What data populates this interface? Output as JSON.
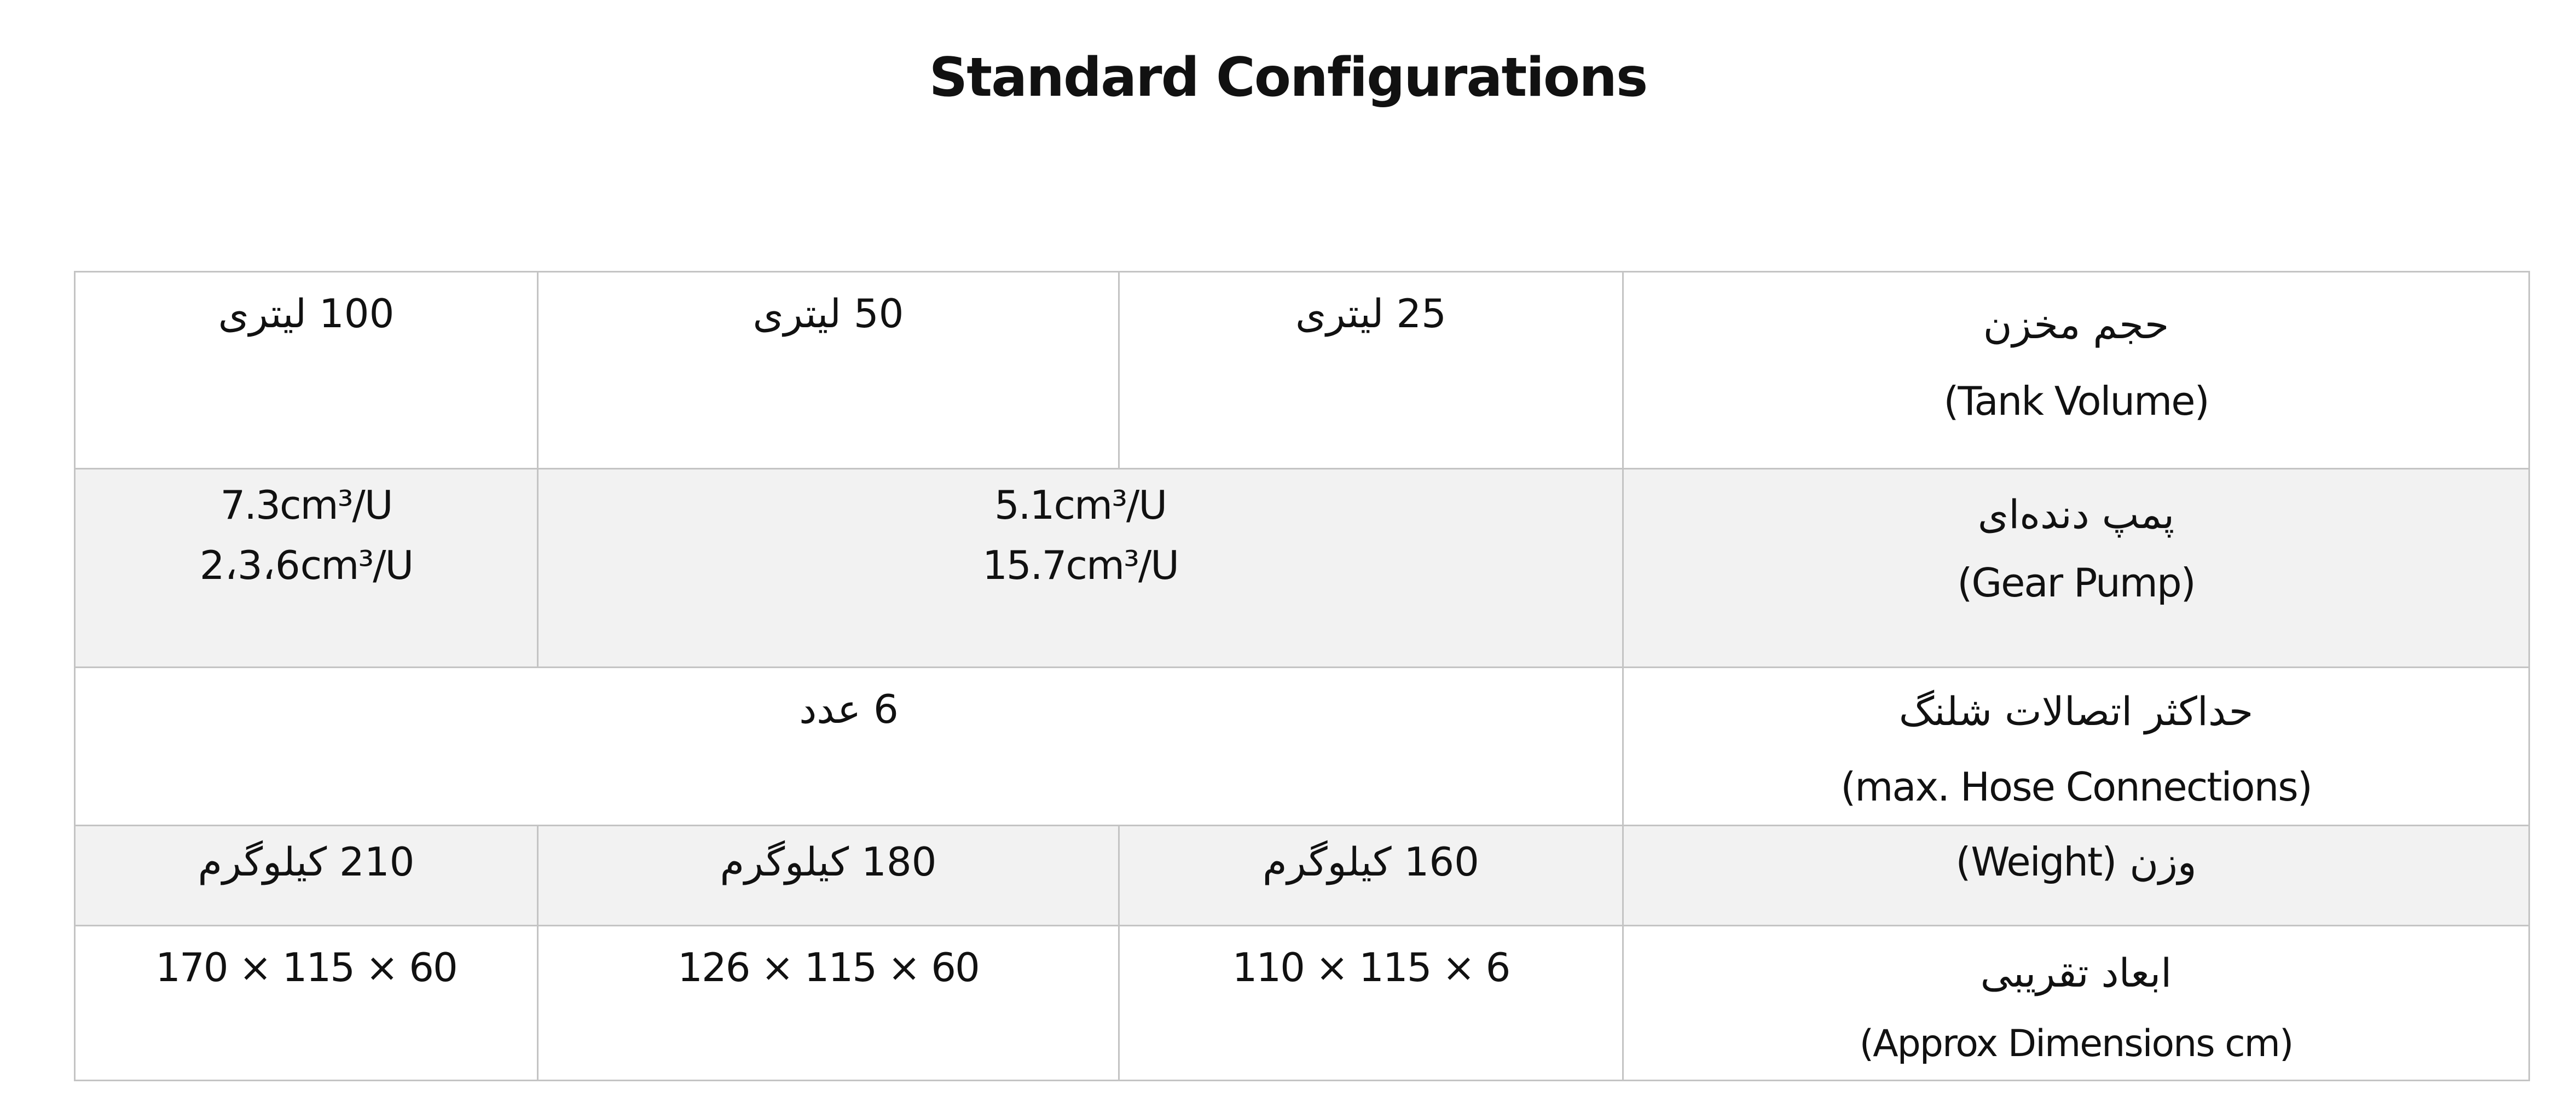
{
  "title": "Standard Configurations",
  "rows": {
    "tank_volume": {
      "label_fa": "حجم مخزن",
      "label_en": "(Tank Volume)",
      "values": [
        "100 لیتری",
        "50 لیتری",
        "25 لیتری"
      ]
    },
    "gear_pump": {
      "label_fa": "پمپ دنده‌ای",
      "label_en": "(Gear Pump)",
      "col_100": [
        "7.3cm³/U",
        "2،3،6cm³/U"
      ],
      "col_50_25": [
        "5.1cm³/U",
        "15.7cm³/U"
      ]
    },
    "hose": {
      "label_fa": "حداکثر اتصالات شلنگ",
      "label_en": "(max. Hose Connections)",
      "value": "6 عدد"
    },
    "weight": {
      "label": "وزن (Weight)",
      "values": [
        "210 کیلوگرم",
        "180 کیلوگرم",
        "160 کیلوگرم"
      ]
    },
    "dimensions": {
      "label_fa": "ابعاد تقریبی",
      "label_en": "(Approx Dimensions cm)",
      "values": [
        "170 × 115 × 60",
        "126 × 115 × 60",
        "110 × 115 × 6"
      ]
    }
  },
  "colors": {
    "border": "#c4c4c4",
    "shade": "#f2f2f2"
  }
}
